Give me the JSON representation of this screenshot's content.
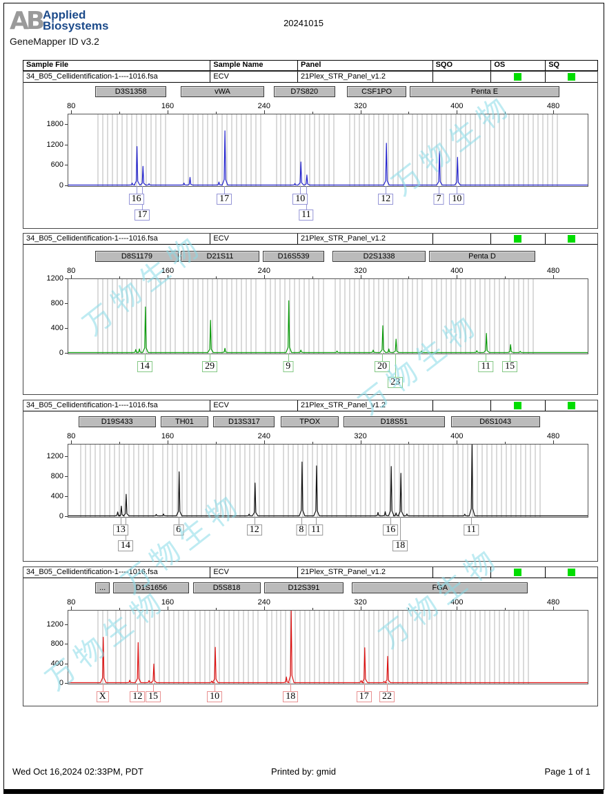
{
  "page": {
    "date": "20241015",
    "app_version": "GeneMapper ID v3.2"
  },
  "logo": {
    "ab": "AB",
    "line1": "Applied",
    "line2": "Biosystems"
  },
  "table": {
    "columns": [
      "Sample File",
      "Sample Name",
      "Panel",
      "SQO",
      "OS",
      "SQ"
    ]
  },
  "sample": {
    "file": "34_B05_Cellidentification-1----1016.fsa",
    "name": "ECV",
    "panel": "21Plex_STR_Panel_v1.2",
    "sqo": "",
    "os_status_color": "#00dd00",
    "sq_status_color": "#00dd00"
  },
  "watermark": {
    "text": "万物生物",
    "color": "rgba(137,219,232,0.55)"
  },
  "footer": {
    "datetime": "Wed Oct 16,2024 02:33PM, PDT",
    "printed_by": "Printed by: gmid",
    "page": "Page 1 of 1"
  },
  "axis": {
    "x_ticks": [
      80,
      160,
      240,
      320,
      400,
      480
    ],
    "bp_min": 77,
    "bp_max": 508,
    "x_unit": "bp",
    "y_unit": "RFU"
  },
  "chart_data": [
    {
      "type": "line",
      "name": "blue-dye-electropherogram",
      "trace_color": "#2222cc",
      "label_color": "#9494d6",
      "y_ticks": [
        1800,
        1200,
        600,
        0
      ],
      "y_max": 2100,
      "markers": [
        {
          "label": "D3S1358",
          "bp": [
            100,
            159
          ]
        },
        {
          "label": "vWA",
          "bp": [
            171,
            240
          ]
        },
        {
          "label": "D7S820",
          "bp": [
            248,
            299
          ]
        },
        {
          "label": "CSF1PO",
          "bp": [
            309,
            358
          ]
        },
        {
          "label": "Penta E",
          "bp": [
            361,
            485
          ]
        }
      ],
      "peaks": [
        {
          "bp": 134,
          "rfu": 1150,
          "allele": "16",
          "row": 1
        },
        {
          "bp": 139,
          "rfu": 560,
          "allele": "17",
          "row": 2
        },
        {
          "bp": 207,
          "rfu": 1620,
          "allele": "17",
          "row": 1
        },
        {
          "bp": 270,
          "rfu": 690,
          "allele": "10",
          "row": 1
        },
        {
          "bp": 275,
          "rfu": 300,
          "allele": "11",
          "row": 2
        },
        {
          "bp": 341,
          "rfu": 1250,
          "allele": "12",
          "row": 1
        },
        {
          "bp": 385,
          "rfu": 1000,
          "allele": "7",
          "row": 1
        },
        {
          "bp": 400,
          "rfu": 830,
          "allele": "10",
          "row": 1
        }
      ],
      "minor_peaks": [
        {
          "bp": 130,
          "rfu": 60
        },
        {
          "bp": 144,
          "rfu": 40
        },
        {
          "bp": 173,
          "rfu": 60
        },
        {
          "bp": 178,
          "rfu": 230
        },
        {
          "bp": 202,
          "rfu": 90
        },
        {
          "bp": 265,
          "rfu": 45
        }
      ]
    },
    {
      "type": "line",
      "name": "green-dye-electropherogram",
      "trace_color": "#089908",
      "label_color": "#84c884",
      "y_ticks": [
        1200,
        800,
        400,
        0
      ],
      "y_max": 1200,
      "markers": [
        {
          "label": "D8S1179",
          "bp": [
            100,
            169
          ]
        },
        {
          "label": "D21S11",
          "bp": [
            171,
            236
          ]
        },
        {
          "label": "D16S539",
          "bp": [
            239,
            290
          ]
        },
        {
          "label": "D2S1338",
          "bp": [
            297,
            374
          ]
        },
        {
          "label": "Penta D",
          "bp": [
            377,
            465
          ]
        }
      ],
      "peaks": [
        {
          "bp": 141,
          "rfu": 750,
          "allele": "14",
          "row": 1
        },
        {
          "bp": 195,
          "rfu": 530,
          "allele": "29",
          "row": 1
        },
        {
          "bp": 260,
          "rfu": 850,
          "allele": "9",
          "row": 1
        },
        {
          "bp": 338,
          "rfu": 440,
          "allele": "20",
          "row": 1
        },
        {
          "bp": 349,
          "rfu": 220,
          "allele": "23",
          "row": 2
        },
        {
          "bp": 424,
          "rfu": 315,
          "allele": "11",
          "row": 1
        },
        {
          "bp": 444,
          "rfu": 130,
          "allele": "15",
          "row": 1
        }
      ],
      "minor_peaks": [
        {
          "bp": 133,
          "rfu": 50
        },
        {
          "bp": 136,
          "rfu": 60
        },
        {
          "bp": 207,
          "rfu": 70
        },
        {
          "bp": 270,
          "rfu": 40
        },
        {
          "bp": 300,
          "rfu": 25
        },
        {
          "bp": 330,
          "rfu": 40
        },
        {
          "bp": 343,
          "rfu": 60
        },
        {
          "bp": 370,
          "rfu": 25
        },
        {
          "bp": 416,
          "rfu": 30
        },
        {
          "bp": 452,
          "rfu": 20
        }
      ]
    },
    {
      "type": "line",
      "name": "black-dye-electropherogram",
      "trace_color": "#111111",
      "label_color": "#999999",
      "y_ticks": [
        1200,
        800,
        400,
        0
      ],
      "y_max": 1450,
      "markers": [
        {
          "label": "D19S433",
          "bp": [
            86,
            150
          ]
        },
        {
          "label": "TH01",
          "bp": [
            154,
            194
          ]
        },
        {
          "label": "D13S317",
          "bp": [
            198,
            249
          ]
        },
        {
          "label": "TPOX",
          "bp": [
            254,
            302
          ]
        },
        {
          "label": "D18S51",
          "bp": [
            306,
            390
          ]
        },
        {
          "label": "D6S1043",
          "bp": [
            395,
            469
          ]
        }
      ],
      "peaks": [
        {
          "bp": 121,
          "rfu": 200,
          "allele": "13",
          "row": 1
        },
        {
          "bp": 125,
          "rfu": 440,
          "allele": "14",
          "row": 2
        },
        {
          "bp": 169,
          "rfu": 900,
          "allele": "6",
          "row": 1
        },
        {
          "bp": 232,
          "rfu": 670,
          "allele": "12",
          "row": 1
        },
        {
          "bp": 271,
          "rfu": 1100,
          "allele": "8",
          "row": 1
        },
        {
          "bp": 283,
          "rfu": 1020,
          "allele": "11",
          "row": 1
        },
        {
          "bp": 345,
          "rfu": 1010,
          "allele": "16",
          "row": 1
        },
        {
          "bp": 353,
          "rfu": 870,
          "allele": "18",
          "row": 2
        },
        {
          "bp": 412,
          "rfu": 1500,
          "allele": "11",
          "row": 1
        }
      ],
      "minor_peaks": [
        {
          "bp": 118,
          "rfu": 80
        },
        {
          "bp": 150,
          "rfu": 30
        },
        {
          "bp": 156,
          "rfu": 40
        },
        {
          "bp": 227,
          "rfu": 35
        },
        {
          "bp": 334,
          "rfu": 70
        },
        {
          "bp": 340,
          "rfu": 85
        },
        {
          "bp": 349,
          "rfu": 60
        },
        {
          "bp": 358,
          "rfu": 40
        },
        {
          "bp": 406,
          "rfu": 35
        }
      ]
    },
    {
      "type": "line",
      "name": "red-dye-electropherogram",
      "trace_color": "#dd1111",
      "label_color": "#e89090",
      "y_ticks": [
        1200,
        800,
        400,
        0
      ],
      "y_max": 1500,
      "markers": [
        {
          "label": "...",
          "bp": [
            100,
            112
          ]
        },
        {
          "label": "D1S1656",
          "bp": [
            115,
            178
          ]
        },
        {
          "label": "D5S818",
          "bp": [
            181,
            237
          ]
        },
        {
          "label": "D12S391",
          "bp": [
            240,
            306
          ]
        },
        {
          "label": "FGA",
          "bp": [
            313,
            459
          ]
        }
      ],
      "peaks": [
        {
          "bp": 106,
          "rfu": 950,
          "allele": "X",
          "row": 1
        },
        {
          "bp": 135,
          "rfu": 840,
          "allele": "12",
          "row": 1
        },
        {
          "bp": 148,
          "rfu": 390,
          "allele": "15",
          "row": 1
        },
        {
          "bp": 199,
          "rfu": 740,
          "allele": "10",
          "row": 1
        },
        {
          "bp": 262,
          "rfu": 1600,
          "allele": "18",
          "row": 1
        },
        {
          "bp": 323,
          "rfu": 730,
          "allele": "17",
          "row": 1
        },
        {
          "bp": 342,
          "rfu": 550,
          "allele": "22",
          "row": 1
        }
      ],
      "minor_peaks": [
        {
          "bp": 128,
          "rfu": 50
        },
        {
          "bp": 144,
          "rfu": 45
        },
        {
          "bp": 196,
          "rfu": 35
        },
        {
          "bp": 258,
          "rfu": 120
        },
        {
          "bp": 320,
          "rfu": 45
        },
        {
          "bp": 339,
          "rfu": 25
        }
      ]
    }
  ]
}
